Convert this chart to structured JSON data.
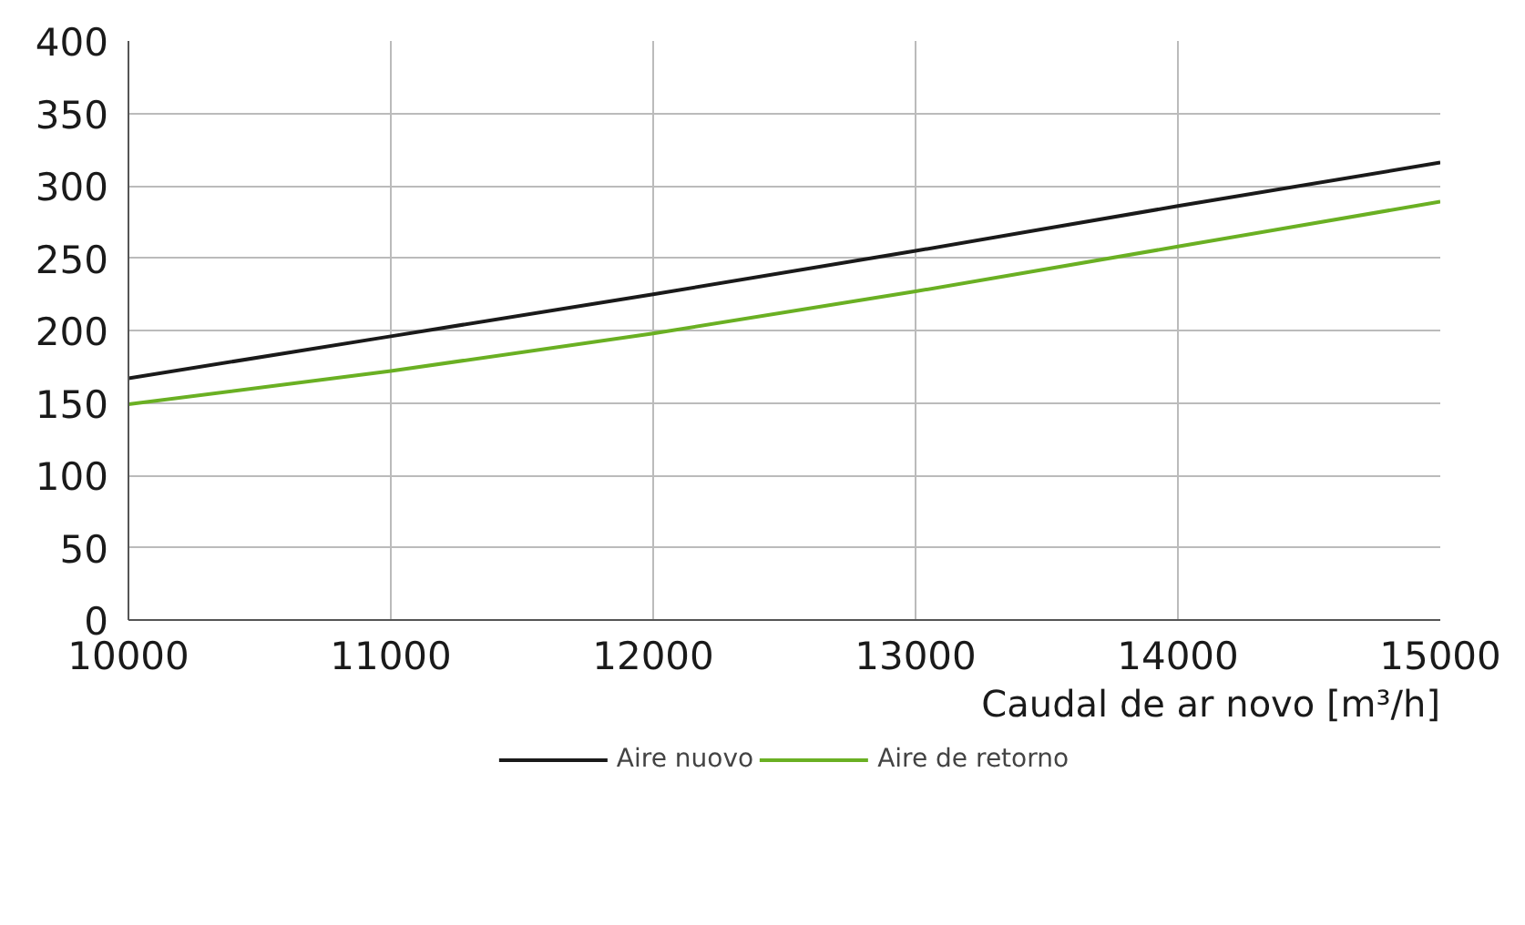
{
  "chart_data": {
    "type": "line",
    "xlabel": "Caudal de ar novo [m³/h]",
    "x": [
      10000,
      11000,
      12000,
      13000,
      14000,
      15000
    ],
    "series": [
      {
        "name": "Aire nuovo",
        "color": "#1a1a1a",
        "values": [
          167,
          196,
          225,
          255,
          286,
          316
        ]
      },
      {
        "name": "Aire de retorno",
        "color": "#6ab023",
        "values": [
          149,
          172,
          198,
          227,
          258,
          289
        ]
      }
    ],
    "xlim": [
      10000,
      15000
    ],
    "ylim": [
      0,
      400
    ],
    "xticks": [
      10000,
      11000,
      12000,
      13000,
      14000,
      15000
    ],
    "yticks": [
      0,
      50,
      100,
      150,
      200,
      250,
      300,
      350,
      400
    ],
    "grid": true,
    "legend": "bottom",
    "marker": "none",
    "line_style": "solid"
  }
}
